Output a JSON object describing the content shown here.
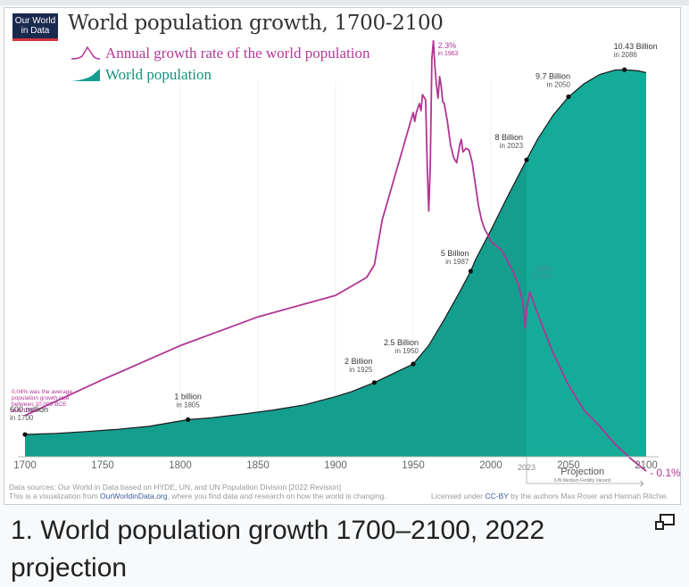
{
  "logo": {
    "line1": "Our World",
    "line2": "in Data"
  },
  "title": "World population growth, 1700-2100",
  "legend": {
    "rate": "Annual growth rate of the world population",
    "population": "World population"
  },
  "colors": {
    "population": "#139e8e",
    "population_projection": "#14ab98",
    "rate": "#b03594",
    "logo_bg": "#1a2a4f",
    "logo_stripe": "#d4343c"
  },
  "chart_data": {
    "type": "area",
    "title": "World population growth, 1700-2100",
    "x_ticks": [
      "1700",
      "1750",
      "1800",
      "1850",
      "1900",
      "1950",
      "2000",
      "2050",
      "2100"
    ],
    "x_extra_tick": "2023",
    "xlim": [
      1700,
      2100
    ],
    "series": [
      {
        "name": "World population",
        "unit": "billion",
        "points": [
          [
            1700,
            0.6
          ],
          [
            1720,
            0.63
          ],
          [
            1740,
            0.68
          ],
          [
            1760,
            0.74
          ],
          [
            1780,
            0.82
          ],
          [
            1805,
            1.0
          ],
          [
            1820,
            1.05
          ],
          [
            1840,
            1.15
          ],
          [
            1860,
            1.26
          ],
          [
            1880,
            1.4
          ],
          [
            1900,
            1.62
          ],
          [
            1910,
            1.75
          ],
          [
            1925,
            2.0
          ],
          [
            1940,
            2.3
          ],
          [
            1950,
            2.5
          ],
          [
            1960,
            3.0
          ],
          [
            1970,
            3.7
          ],
          [
            1980,
            4.45
          ],
          [
            1987,
            5.0
          ],
          [
            1990,
            5.3
          ],
          [
            2000,
            6.1
          ],
          [
            2010,
            6.95
          ],
          [
            2023,
            8.0
          ],
          [
            2030,
            8.55
          ],
          [
            2040,
            9.2
          ],
          [
            2050,
            9.7
          ],
          [
            2060,
            10.05
          ],
          [
            2070,
            10.3
          ],
          [
            2080,
            10.42
          ],
          [
            2086,
            10.43
          ],
          [
            2095,
            10.4
          ],
          [
            2100,
            10.35
          ]
        ]
      },
      {
        "name": "Annual growth rate of the world population",
        "unit": "percent",
        "points": [
          [
            1700,
            0.21
          ],
          [
            1750,
            0.41
          ],
          [
            1800,
            0.6
          ],
          [
            1850,
            0.76
          ],
          [
            1900,
            0.88
          ],
          [
            1910,
            0.93
          ],
          [
            1920,
            0.98
          ],
          [
            1925,
            1.05
          ],
          [
            1930,
            1.3
          ],
          [
            1940,
            1.6
          ],
          [
            1950,
            1.9
          ],
          [
            1951,
            1.85
          ],
          [
            1952,
            1.9
          ],
          [
            1954,
            1.95
          ],
          [
            1955,
            1.91
          ],
          [
            1956,
            2.0
          ],
          [
            1958,
            1.97
          ],
          [
            1959,
            1.6
          ],
          [
            1960,
            1.35
          ],
          [
            1961,
            1.6
          ],
          [
            1962,
            2.2
          ],
          [
            1963,
            2.3
          ],
          [
            1964,
            2.15
          ],
          [
            1965,
            2.05
          ],
          [
            1966,
            1.98
          ],
          [
            1967,
            2.1
          ],
          [
            1968,
            2.05
          ],
          [
            1969,
            1.96
          ],
          [
            1970,
            1.95
          ],
          [
            1972,
            1.85
          ],
          [
            1974,
            1.72
          ],
          [
            1976,
            1.65
          ],
          [
            1978,
            1.62
          ],
          [
            1980,
            1.72
          ],
          [
            1981,
            1.75
          ],
          [
            1982,
            1.68
          ],
          [
            1984,
            1.7
          ],
          [
            1986,
            1.69
          ],
          [
            1988,
            1.62
          ],
          [
            1990,
            1.5
          ],
          [
            1992,
            1.38
          ],
          [
            1994,
            1.3
          ],
          [
            1996,
            1.25
          ],
          [
            1998,
            1.22
          ],
          [
            2000,
            1.18
          ],
          [
            2003,
            1.16
          ],
          [
            2006,
            1.14
          ],
          [
            2009,
            1.1
          ],
          [
            2012,
            1.05
          ],
          [
            2015,
            1.0
          ],
          [
            2018,
            0.93
          ],
          [
            2020,
            0.86
          ],
          [
            2021,
            0.82
          ],
          [
            2022,
            0.7
          ],
          [
            2023,
            0.8
          ],
          [
            2025,
            0.9
          ],
          [
            2030,
            0.78
          ],
          [
            2035,
            0.67
          ],
          [
            2040,
            0.56
          ],
          [
            2050,
            0.38
          ],
          [
            2060,
            0.24
          ],
          [
            2070,
            0.15
          ],
          [
            2080,
            0.05
          ],
          [
            2090,
            -0.03
          ],
          [
            2100,
            -0.1
          ]
        ]
      }
    ],
    "annotations": [
      {
        "series": "population",
        "year": 1700,
        "label": "600 million",
        "sub": "in 1700"
      },
      {
        "series": "population",
        "year": 1805,
        "label": "1 billion",
        "sub": "in 1805"
      },
      {
        "series": "population",
        "year": 1925,
        "label": "2 Billion",
        "sub": "in 1925"
      },
      {
        "series": "population",
        "year": 1950,
        "label": "2.5 Billion",
        "sub": "in 1950"
      },
      {
        "series": "population",
        "year": 1987,
        "label": "5 Billion",
        "sub": "in 1987"
      },
      {
        "series": "population",
        "year": 2023,
        "label": "8 Billion",
        "sub": "in 2023"
      },
      {
        "series": "population",
        "year": 2050,
        "label": "9.7 Billion",
        "sub": "in 2050"
      },
      {
        "series": "population",
        "year": 2086,
        "label": "10.43 Billion",
        "sub": "in 2086"
      },
      {
        "series": "rate",
        "year": 1963,
        "label": "2.3%",
        "sub": "in 1963"
      },
      {
        "series": "rate",
        "year": 2023,
        "label": "0.8%",
        "sub": "in 2023"
      },
      {
        "series": "rate",
        "year": 2100,
        "label": "- 0.1%",
        "sub": ""
      }
    ],
    "note": "0.04% was the average population growth rate between 10,000 BCE and 1700",
    "projection": {
      "label": "Projection",
      "sub": "(UN Medium Fertility Variant)",
      "from": 2023
    }
  },
  "footer": {
    "sources": "Data sources: Our World in Data based on HYDE, UN, and UN Population Division [2022 Revision]",
    "viz_prefix": "This is a visualization from ",
    "viz_link": "OurWorldinData.org",
    "viz_suffix": ", where you find data and research on how the world is changing.",
    "license_prefix": "Licensed under ",
    "license_link": "CC-BY",
    "license_suffix": " by the authors Max Roser and Hannah Ritchie."
  },
  "caption": "1. World population growth 1700–2100, 2022 projection"
}
